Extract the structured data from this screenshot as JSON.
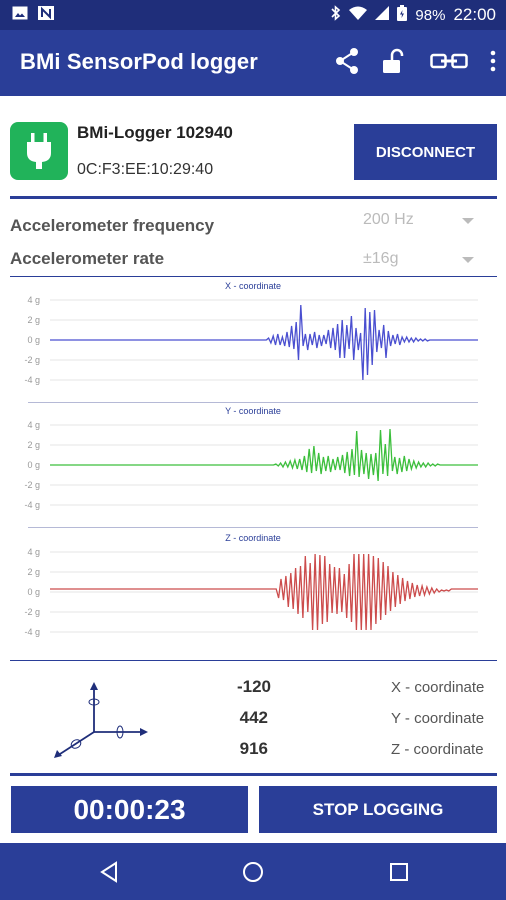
{
  "status_bar": {
    "battery": "98%",
    "time": "22:00"
  },
  "app_bar": {
    "title": "BMi SensorPod logger",
    "actions": [
      "share-icon",
      "unlock-icon",
      "link-icon",
      "more-vert-icon"
    ]
  },
  "device": {
    "name": "BMi-Logger 102940",
    "mac": "0C:F3:EE:10:29:40",
    "disconnect_label": "DISCONNECT",
    "icon": "plug-icon"
  },
  "settings": {
    "frequency": {
      "label": "Accelerometer frequency",
      "value": "200 Hz"
    },
    "rate": {
      "label": "Accelerometer rate",
      "value": "±16g"
    }
  },
  "colors": {
    "primary": "#2a3e98",
    "status_bar": "#1f2e7a",
    "x_series": "#4a4fd0",
    "y_series": "#3cbf3c",
    "z_series": "#cc4c4c",
    "device_icon": "#21b35a"
  },
  "chart_data": [
    {
      "type": "line",
      "title": "X - coordinate",
      "ylabel": "",
      "yticks": [
        "4 g",
        "2 g",
        "0 g",
        "-2 g",
        "-4 g"
      ],
      "ylim": [
        -4,
        4
      ],
      "color": "#4a4fd0",
      "values": [
        0,
        0,
        0,
        0,
        0,
        0,
        0,
        0,
        0,
        0,
        0,
        0,
        0,
        0,
        0,
        0,
        0,
        0,
        0,
        0,
        0,
        0,
        0,
        0,
        0,
        0,
        0,
        0,
        0,
        0,
        0,
        0,
        0,
        0,
        0,
        0,
        0,
        0,
        0,
        0,
        0,
        0,
        0,
        0,
        0,
        0,
        0,
        0,
        0,
        0,
        0,
        0,
        0,
        0,
        0,
        0,
        0,
        0,
        0,
        0,
        0,
        0,
        0,
        0,
        0,
        0,
        0,
        0,
        0,
        0,
        0,
        0,
        0,
        0,
        0,
        0,
        0,
        0,
        0,
        0,
        0,
        0,
        0,
        0,
        0,
        0,
        0,
        0,
        0,
        0,
        0,
        0,
        0,
        0,
        0,
        0.2,
        -0.3,
        0.4,
        -0.5,
        0.6,
        -0.5,
        0.3,
        -0.6,
        0.8,
        -0.7,
        1.4,
        -0.9,
        1.8,
        -2.0,
        3.5,
        -0.6,
        0.6,
        -1.0,
        0.6,
        -0.5,
        0.8,
        -0.8,
        0.5,
        -0.6,
        0.5,
        -0.4,
        1.0,
        -0.8,
        1.2,
        -1.0,
        1.6,
        -1.8,
        2.0,
        -1.8,
        1.5,
        -0.9,
        2.4,
        -2.0,
        1.2,
        -1.0,
        0.7,
        -4.0,
        3.2,
        -3.5,
        2.8,
        -2.5,
        3.0,
        -1.2,
        1.0,
        -0.8,
        1.5,
        -1.8,
        0.9,
        -0.6,
        0.5,
        -0.4,
        0.6,
        -0.5,
        0.3,
        -0.2,
        0.3,
        -0.2,
        0.2,
        -0.2,
        0.2,
        -0.1,
        0.1,
        -0.1,
        0.1,
        -0.1,
        0,
        0,
        0,
        0,
        0,
        0,
        0,
        0,
        0,
        0,
        0,
        0,
        0,
        0,
        0,
        0,
        0,
        0,
        0,
        0,
        0,
        0
      ]
    },
    {
      "type": "line",
      "title": "Y - coordinate",
      "ylabel": "",
      "yticks": [
        "4 g",
        "2 g",
        "0 g",
        "-2 g",
        "-4 g"
      ],
      "ylim": [
        -4,
        4
      ],
      "color": "#3cbf3c",
      "values": [
        0,
        0,
        0,
        0,
        0,
        0,
        0,
        0,
        0,
        0,
        0,
        0,
        0,
        0,
        0,
        0,
        0,
        0,
        0,
        0,
        0,
        0,
        0,
        0,
        0,
        0,
        0,
        0,
        0,
        0,
        0,
        0,
        0,
        0,
        0,
        0,
        0,
        0,
        0,
        0,
        0,
        0,
        0,
        0,
        0,
        0,
        0,
        0,
        0,
        0,
        0,
        0,
        0,
        0,
        0,
        0,
        0,
        0,
        0,
        0,
        0,
        0,
        0,
        0,
        0,
        0,
        0,
        0,
        0,
        0,
        0,
        0,
        0,
        0,
        0,
        0,
        0,
        0,
        0,
        0,
        0,
        0,
        0,
        0,
        0,
        0,
        0,
        0,
        0,
        0,
        0,
        0,
        0,
        0,
        0,
        0.1,
        -0.1,
        0.2,
        -0.2,
        0.3,
        -0.2,
        0.4,
        -0.3,
        0.5,
        -0.4,
        0.6,
        -0.5,
        0.9,
        -0.7,
        1.6,
        -0.8,
        1.9,
        -0.6,
        1.2,
        -0.9,
        0.8,
        -0.6,
        0.9,
        -0.7,
        0.6,
        -0.5,
        0.8,
        -0.5,
        1.0,
        -0.8,
        1.3,
        -1.1,
        1.6,
        -1.0,
        3.4,
        -1.2,
        1.5,
        -0.9,
        1.2,
        -1.4,
        1.1,
        -1.0,
        1.2,
        -1.6,
        3.5,
        -0.9,
        2.1,
        -1.1,
        3.6,
        -0.6,
        0.8,
        -0.9,
        0.7,
        -0.7,
        0.9,
        -0.6,
        0.6,
        -0.4,
        0.4,
        -0.3,
        0.3,
        -0.2,
        0.2,
        -0.2,
        0.2,
        -0.1,
        0.1,
        -0.1,
        0.1,
        0,
        0,
        0,
        0,
        0,
        0,
        0,
        0,
        0,
        0,
        0,
        0,
        0,
        0,
        0,
        0,
        0
      ]
    },
    {
      "type": "line",
      "title": "Z - coordinate",
      "ylabel": "",
      "yticks": [
        "4 g",
        "2 g",
        "0 g",
        "-2 g",
        "-4 g"
      ],
      "ylim": [
        -4,
        4
      ],
      "color": "#cc4c4c",
      "values": [
        0.3,
        0.3,
        0.3,
        0.3,
        0.3,
        0.3,
        0.3,
        0.3,
        0.3,
        0.3,
        0.3,
        0.3,
        0.3,
        0.3,
        0.3,
        0.3,
        0.3,
        0.3,
        0.3,
        0.3,
        0.3,
        0.3,
        0.3,
        0.3,
        0.3,
        0.3,
        0.3,
        0.3,
        0.3,
        0.3,
        0.3,
        0.3,
        0.3,
        0.3,
        0.3,
        0.3,
        0.3,
        0.3,
        0.3,
        0.3,
        0.3,
        0.3,
        0.3,
        0.3,
        0.3,
        0.3,
        0.3,
        0.3,
        0.3,
        0.3,
        0.3,
        0.3,
        0.3,
        0.3,
        0.3,
        0.3,
        0.3,
        0.3,
        0.3,
        0.3,
        0.3,
        0.3,
        0.3,
        0.3,
        0.3,
        0.3,
        0.3,
        0.3,
        0.3,
        0.3,
        0.3,
        0.3,
        0.3,
        0.3,
        0.3,
        0.3,
        0.3,
        0.3,
        0.3,
        0.3,
        0.3,
        0.3,
        0.3,
        0.3,
        0.3,
        0.3,
        0.3,
        0.3,
        0.3,
        0.3,
        0.3,
        0.3,
        0.3,
        0.3,
        -0.6,
        1.3,
        -0.8,
        1.6,
        -1.5,
        1.9,
        -1.7,
        2.4,
        -2.2,
        2.6,
        -2.6,
        3.6,
        -2.0,
        2.9,
        -3.8,
        3.8,
        -3.8,
        3.7,
        -3.2,
        3.6,
        -3.0,
        2.8,
        -2.1,
        2.5,
        -2.2,
        2.4,
        -2.0,
        1.8,
        -2.6,
        2.8,
        -3.0,
        3.8,
        -3.8,
        3.8,
        -3.8,
        3.8,
        -3.8,
        3.8,
        -3.8,
        3.6,
        -3.2,
        3.4,
        -2.8,
        3.0,
        -2.3,
        2.6,
        -1.9,
        2.0,
        -1.5,
        1.7,
        -1.2,
        1.4,
        -0.9,
        1.1,
        -0.7,
        0.9,
        -0.5,
        0.7,
        -0.4,
        0.6,
        -0.3,
        0.5,
        -0.2,
        0.4,
        -0.1,
        0.3,
        0,
        0.2,
        0.1,
        0.2,
        0.1,
        0.3,
        0.3,
        0.3,
        0.3,
        0.3,
        0.3,
        0.3,
        0.3,
        0.3,
        0.3,
        0.3,
        0.3
      ]
    }
  ],
  "readings": [
    {
      "value": "-120",
      "label": "X - coordinate"
    },
    {
      "value": "442",
      "label": "Y - coordinate"
    },
    {
      "value": "916",
      "label": "Z - coordinate"
    }
  ],
  "timer": "00:00:23",
  "stop_label": "STOP LOGGING",
  "nav": [
    "back-icon",
    "home-icon",
    "recents-icon"
  ]
}
